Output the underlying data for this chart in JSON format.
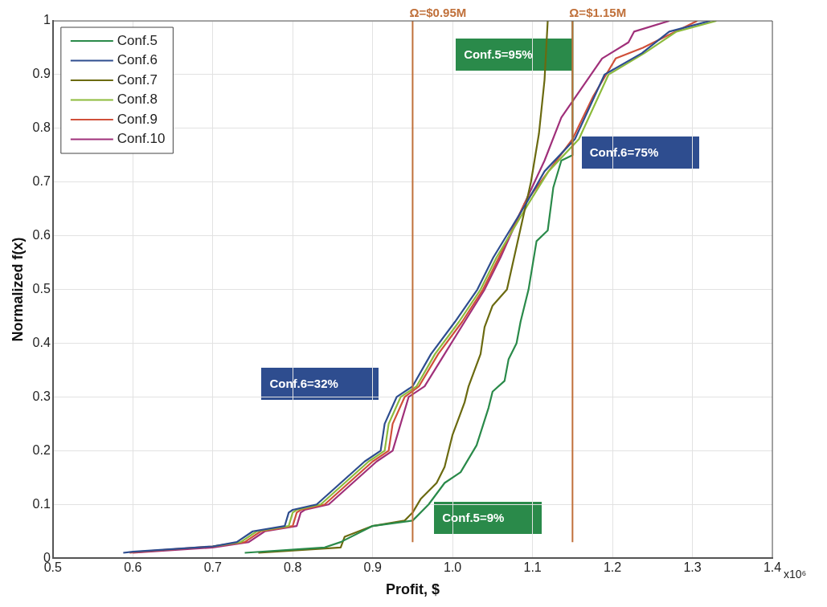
{
  "chart_data": {
    "type": "line",
    "xlabel": "Profit, $",
    "ylabel": "Normalized f(x)",
    "xlim": [
      0.5,
      1.4
    ],
    "xticks": [
      0.5,
      0.6,
      0.7,
      0.8,
      0.9,
      {
        "value": 1,
        "label": "1.0"
      },
      1.1,
      1.2,
      1.3,
      1.4
    ],
    "ylim": [
      0,
      1
    ],
    "yticks": [
      0,
      0.1,
      0.2,
      0.3,
      0.4,
      0.5,
      0.6,
      0.7,
      0.8,
      0.9,
      1
    ],
    "grid": true,
    "legend": "top left",
    "marker": "none",
    "line_style": "solid",
    "series": [
      {
        "name": "Conf.5",
        "color": "#2a8a4a",
        "x": [
          0.74,
          0.84,
          0.86,
          0.9,
          0.95,
          0.97,
          0.99,
          1.01,
          1.03,
          1.045,
          1.05,
          1.065,
          1.07,
          1.08,
          1.085,
          1.095,
          1.105,
          1.119,
          1.126,
          1.136,
          1.15,
          1.15
        ],
        "values": [
          0.01,
          0.02,
          0.03,
          0.06,
          0.07,
          0.1,
          0.14,
          0.16,
          0.21,
          0.28,
          0.31,
          0.33,
          0.37,
          0.4,
          0.44,
          0.5,
          0.59,
          0.61,
          0.69,
          0.74,
          0.75,
          1.0
        ]
      },
      {
        "name": "Conf.6",
        "color": "#2e4d8f",
        "x": [
          0.588,
          0.6,
          0.7,
          0.73,
          0.75,
          0.79,
          0.795,
          0.8,
          0.83,
          0.86,
          0.89,
          0.91,
          0.915,
          0.93,
          0.95,
          0.973,
          1.003,
          1.031,
          1.051,
          1.092,
          1.115,
          1.153,
          1.19,
          1.237,
          1.271,
          1.322
        ],
        "values": [
          0.01,
          0.012,
          0.022,
          0.03,
          0.05,
          0.06,
          0.085,
          0.09,
          0.1,
          0.14,
          0.18,
          0.2,
          0.25,
          0.3,
          0.32,
          0.38,
          0.44,
          0.5,
          0.56,
          0.66,
          0.72,
          0.78,
          0.9,
          0.94,
          0.98,
          1.0
        ]
      },
      {
        "name": "Conf.7",
        "color": "#6b6a10",
        "x": [
          0.757,
          0.86,
          0.865,
          0.9,
          0.94,
          0.95,
          0.96,
          0.98,
          0.99,
          1.0,
          1.01,
          1.015,
          1.02,
          1.035,
          1.04,
          1.05,
          1.068,
          1.098,
          1.108,
          1.115,
          1.119
        ],
        "values": [
          0.01,
          0.02,
          0.04,
          0.06,
          0.07,
          0.085,
          0.11,
          0.14,
          0.17,
          0.23,
          0.27,
          0.29,
          0.32,
          0.38,
          0.43,
          0.47,
          0.5,
          0.7,
          0.79,
          0.89,
          1.0
        ]
      },
      {
        "name": "Conf.8",
        "color": "#8dbb3c",
        "x": [
          0.7,
          0.735,
          0.755,
          0.795,
          0.8,
          0.805,
          0.835,
          0.865,
          0.895,
          0.915,
          0.92,
          0.935,
          0.955,
          0.978,
          1.008,
          1.035,
          1.055,
          1.095,
          1.12,
          1.158,
          1.195,
          1.24,
          1.28,
          1.33
        ],
        "values": [
          0.022,
          0.03,
          0.05,
          0.06,
          0.085,
          0.09,
          0.1,
          0.14,
          0.18,
          0.2,
          0.25,
          0.3,
          0.32,
          0.38,
          0.44,
          0.5,
          0.56,
          0.66,
          0.72,
          0.78,
          0.9,
          0.94,
          0.98,
          1.0
        ]
      },
      {
        "name": "Conf.9",
        "color": "#d0503a",
        "x": [
          0.596,
          0.61,
          0.7,
          0.74,
          0.76,
          0.8,
          0.805,
          0.81,
          0.84,
          0.87,
          0.9,
          0.92,
          0.925,
          0.94,
          0.958,
          0.982,
          1.012,
          1.038,
          1.058,
          1.09,
          1.12,
          1.15,
          1.176,
          1.204,
          1.238,
          1.306
        ],
        "values": [
          0.01,
          0.012,
          0.022,
          0.03,
          0.05,
          0.06,
          0.085,
          0.09,
          0.1,
          0.14,
          0.18,
          0.2,
          0.25,
          0.3,
          0.32,
          0.38,
          0.44,
          0.5,
          0.56,
          0.66,
          0.72,
          0.78,
          0.86,
          0.93,
          0.95,
          1.0
        ]
      },
      {
        "name": "Conf.10",
        "color": "#a0307a",
        "x": [
          0.6,
          0.7,
          0.745,
          0.765,
          0.805,
          0.81,
          0.815,
          0.845,
          0.875,
          0.905,
          0.925,
          0.935,
          0.945,
          0.965,
          0.99,
          1.015,
          1.04,
          1.06,
          1.09,
          1.115,
          1.136,
          1.187,
          1.22,
          1.227,
          1.271
        ],
        "values": [
          0.01,
          0.02,
          0.03,
          0.05,
          0.06,
          0.085,
          0.09,
          0.1,
          0.14,
          0.18,
          0.2,
          0.25,
          0.3,
          0.32,
          0.38,
          0.44,
          0.5,
          0.56,
          0.66,
          0.74,
          0.82,
          0.93,
          0.96,
          0.98,
          1.0
        ]
      }
    ],
    "ref_lines": [
      {
        "axis": "x",
        "value": 0.95,
        "label": "Ω=$0.95M",
        "color": "#c0703a"
      },
      {
        "axis": "x",
        "value": 1.15,
        "label": "Ω=$1.15M",
        "color": "#c0703a"
      }
    ],
    "annotations": [
      "Conf.5=95%",
      "Conf.6=75%",
      "Conf.6=32%",
      "Conf.5=9%",
      "x10⁶"
    ]
  }
}
